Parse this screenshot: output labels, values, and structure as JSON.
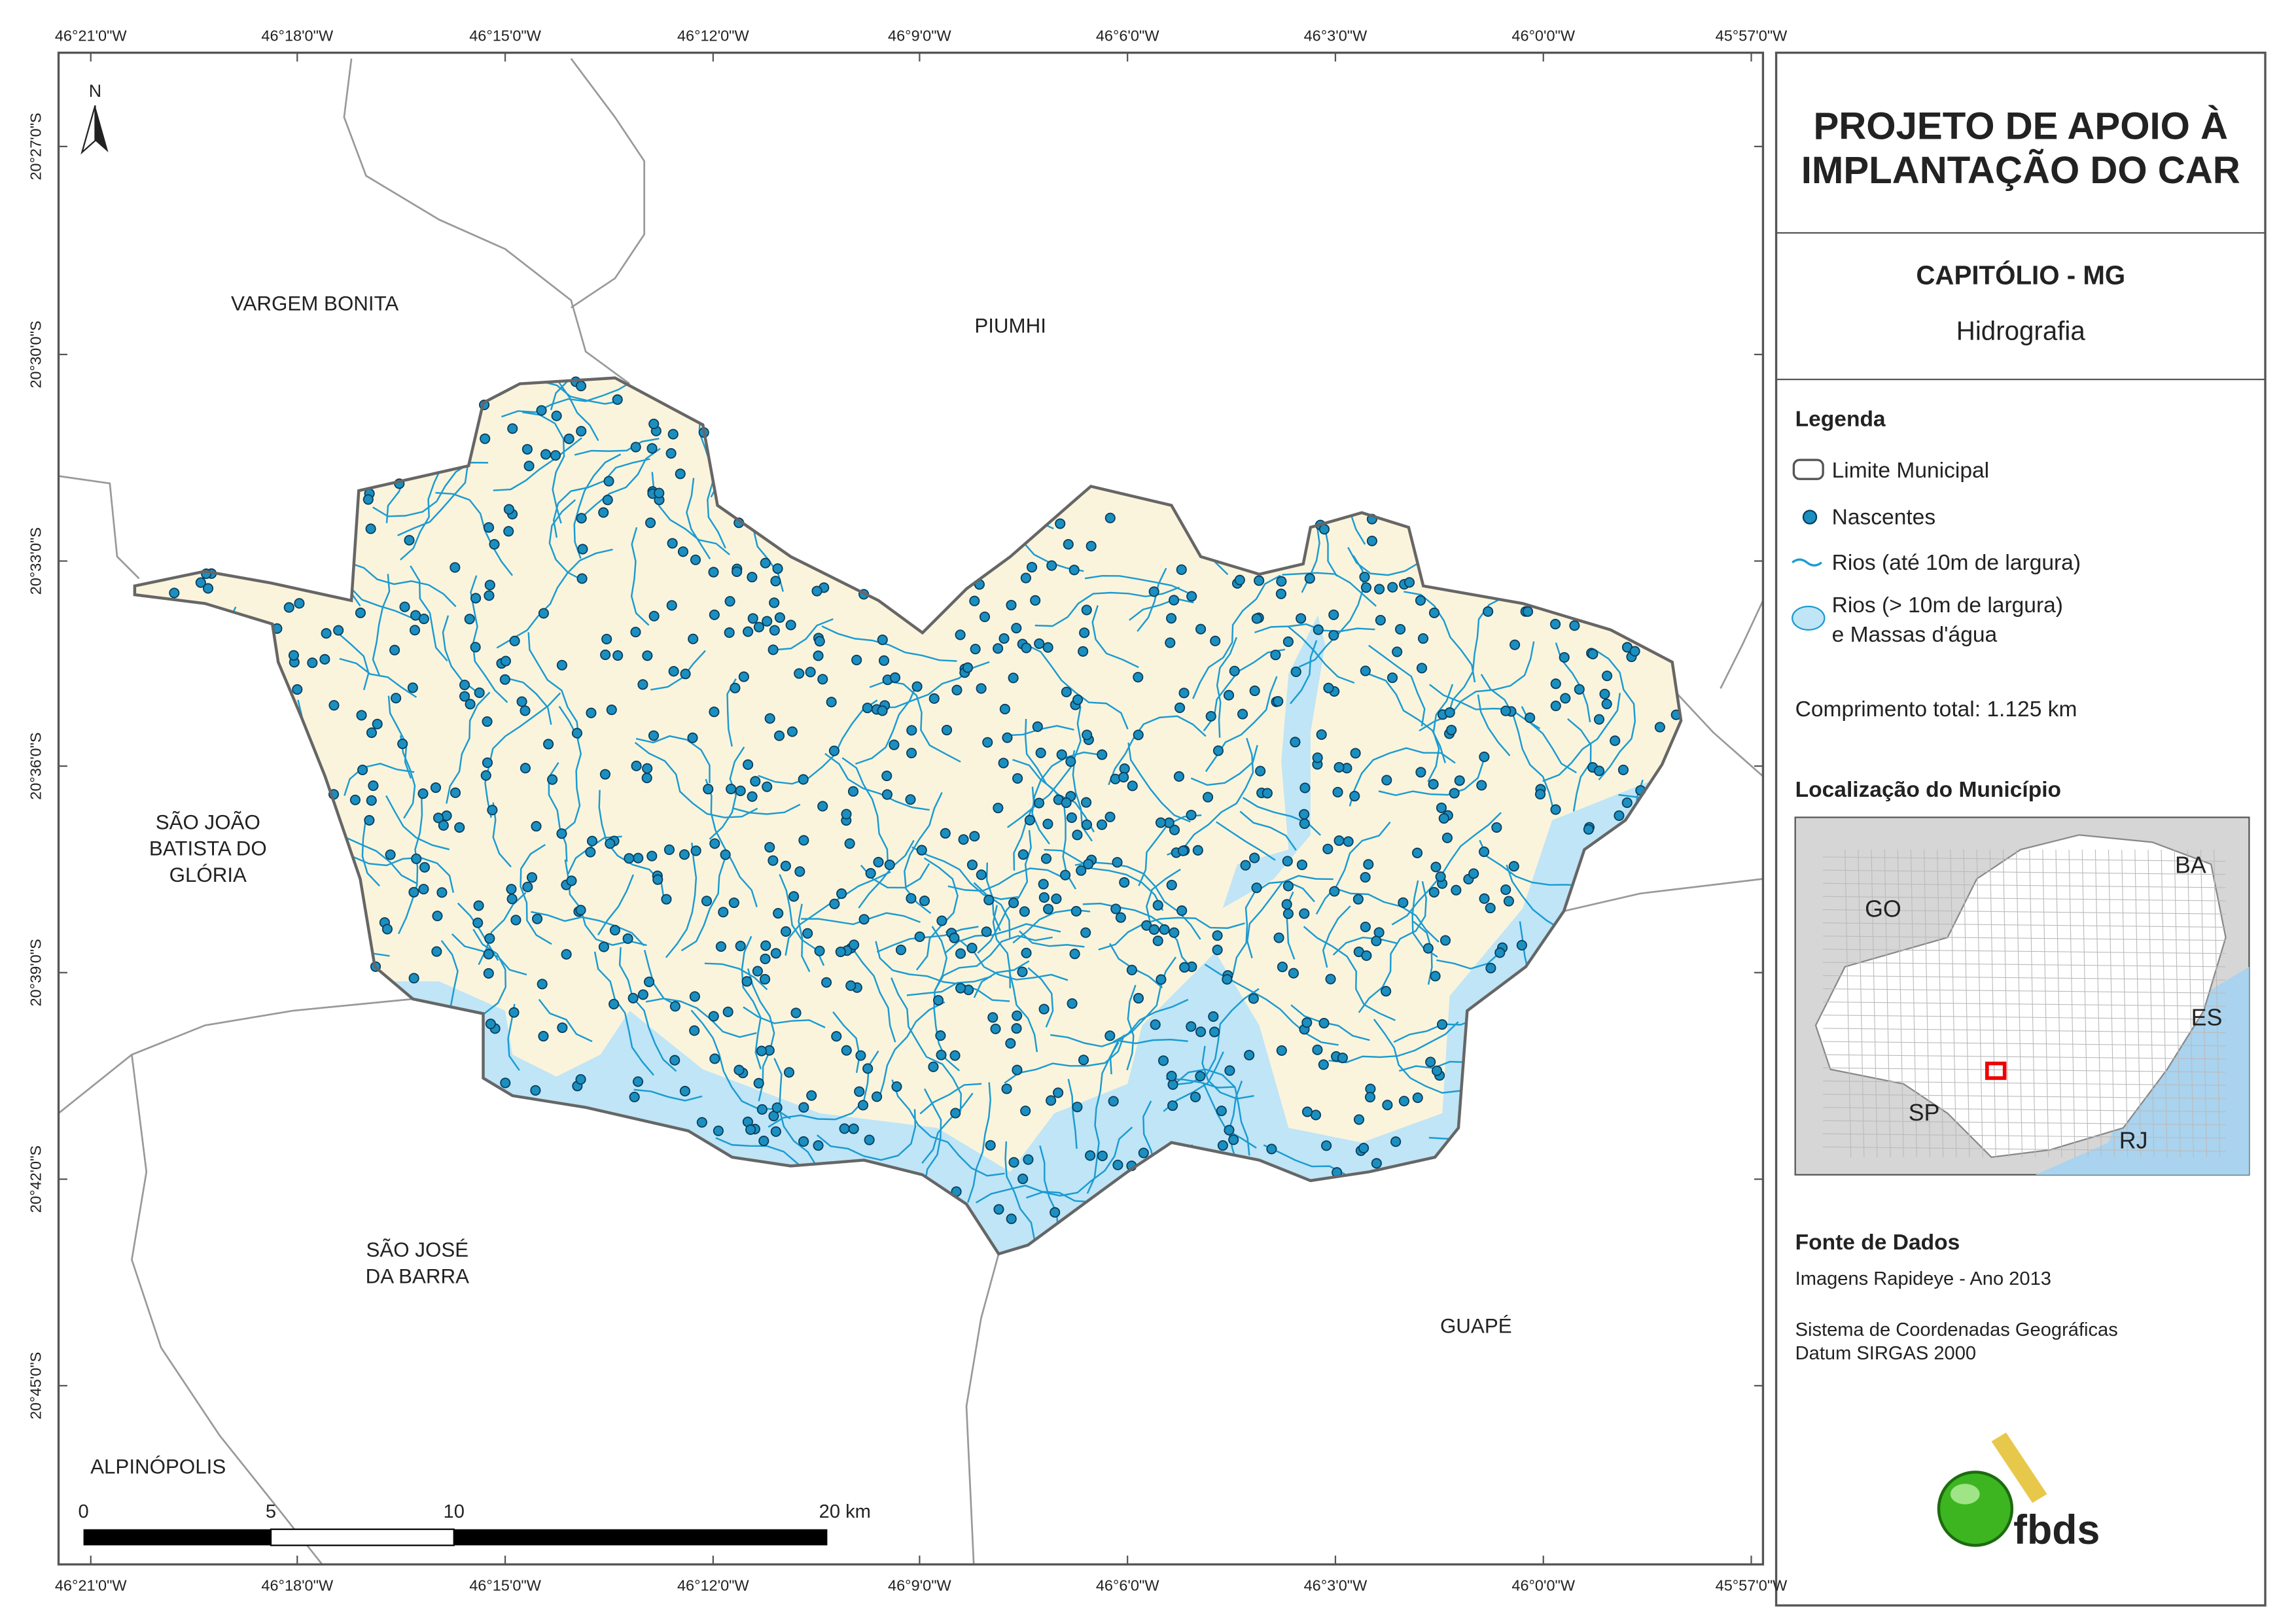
{
  "map": {
    "north": "N",
    "lon_labels": [
      "46°21'0\"W",
      "46°18'0\"W",
      "46°15'0\"W",
      "46°12'0\"W",
      "46°9'0\"W",
      "46°6'0\"W",
      "46°3'0\"W",
      "46°0'0\"W",
      "45°57'0\"W"
    ],
    "lat_labels": [
      "20°27'0\"S",
      "20°30'0\"S",
      "20°33'0\"S",
      "20°36'0\"S",
      "20°39'0\"S",
      "20°42'0\"S",
      "20°45'0\"S"
    ],
    "places": [
      [
        "VARGEM BONITA"
      ],
      [
        "PIUMHI"
      ],
      [
        "SÃO JOÃO",
        "BATISTA DO",
        "GLÓRIA"
      ],
      [
        "SÃO JOSÉ",
        "DA BARRA"
      ],
      [
        "GUAPÉ"
      ],
      [
        "ALPINÓPOLIS"
      ]
    ],
    "scale": [
      "0",
      "5",
      "10",
      "20 km"
    ]
  },
  "panel": {
    "title": [
      "PROJETO DE APOIO À",
      "IMPLANTAÇÃO DO CAR"
    ],
    "municipality": "CAPITÓLIO - MG",
    "theme": "Hidrografia",
    "legend_title": "Legenda",
    "legend": [
      [
        "Limite Municipal"
      ],
      [
        "Nascentes"
      ],
      [
        "Rios (até 10m de largura)"
      ],
      [
        "Rios (> 10m de largura)",
        "e Massas d'água"
      ]
    ],
    "length": "Comprimento total:  1.125 km",
    "location_title": "Localização do Município",
    "states": [
      "BA",
      "GO",
      "ES",
      "SP",
      "RJ"
    ],
    "source_title": "Fonte de Dados",
    "source": [
      "Imagens Rapideye - Ano 2013",
      "Sistema de Coordenadas Geográficas",
      "Datum SIRGAS 2000"
    ],
    "logo": "fbds"
  }
}
